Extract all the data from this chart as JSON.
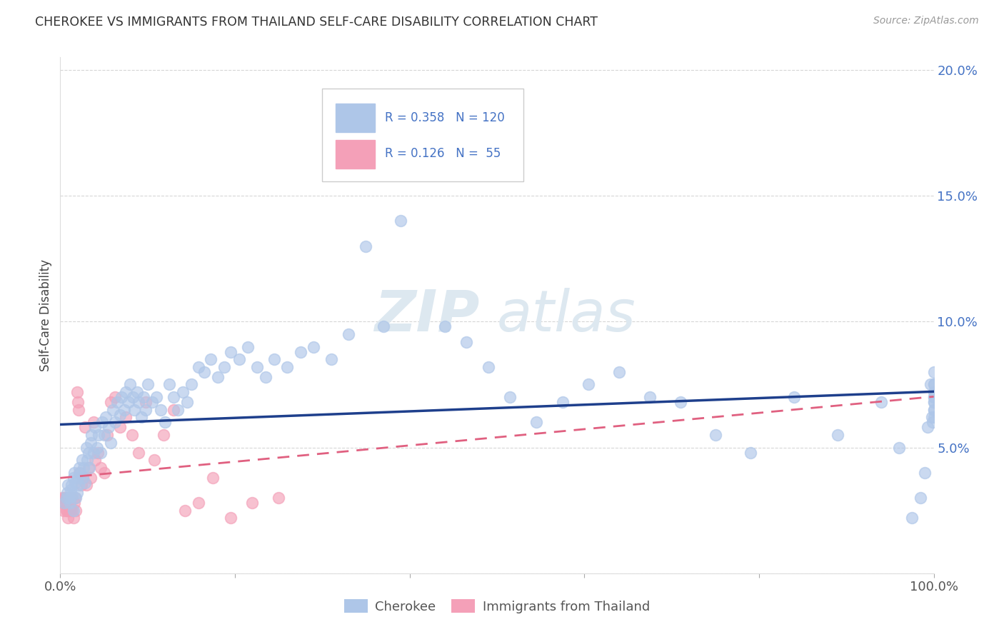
{
  "title": "CHEROKEE VS IMMIGRANTS FROM THAILAND SELF-CARE DISABILITY CORRELATION CHART",
  "source": "Source: ZipAtlas.com",
  "ylabel": "Self-Care Disability",
  "xlim": [
    0,
    1.0
  ],
  "ylim": [
    0,
    0.205
  ],
  "cherokee_R": 0.358,
  "cherokee_N": 120,
  "thailand_R": 0.126,
  "thailand_N": 55,
  "cherokee_color": "#aec6e8",
  "thailand_color": "#f4a0b8",
  "trendline_cherokee_color": "#1e3f8c",
  "trendline_thailand_color": "#e06080",
  "legend_label_cherokee": "Cherokee",
  "legend_label_thailand": "Immigrants from Thailand",
  "watermark_zip": "ZIP",
  "watermark_atlas": "atlas",
  "tick_color": "#4472c4",
  "grid_color": "#cccccc",
  "cherokee_x": [
    0.005,
    0.007,
    0.008,
    0.009,
    0.01,
    0.011,
    0.012,
    0.013,
    0.014,
    0.015,
    0.015,
    0.016,
    0.017,
    0.018,
    0.019,
    0.02,
    0.021,
    0.022,
    0.023,
    0.025,
    0.026,
    0.027,
    0.028,
    0.03,
    0.031,
    0.032,
    0.033,
    0.035,
    0.036,
    0.038,
    0.04,
    0.042,
    0.044,
    0.046,
    0.048,
    0.05,
    0.052,
    0.055,
    0.058,
    0.06,
    0.063,
    0.065,
    0.068,
    0.07,
    0.073,
    0.075,
    0.078,
    0.08,
    0.083,
    0.085,
    0.088,
    0.09,
    0.093,
    0.095,
    0.098,
    0.1,
    0.105,
    0.11,
    0.115,
    0.12,
    0.125,
    0.13,
    0.135,
    0.14,
    0.145,
    0.15,
    0.158,
    0.165,
    0.172,
    0.18,
    0.188,
    0.195,
    0.205,
    0.215,
    0.225,
    0.235,
    0.245,
    0.26,
    0.275,
    0.29,
    0.31,
    0.33,
    0.35,
    0.37,
    0.39,
    0.415,
    0.44,
    0.465,
    0.49,
    0.515,
    0.545,
    0.575,
    0.605,
    0.64,
    0.675,
    0.71,
    0.75,
    0.79,
    0.84,
    0.89,
    0.94,
    0.96,
    0.975,
    0.985,
    0.99,
    0.993,
    0.996,
    0.998,
    0.999,
    1.0,
    1.0,
    1.0,
    1.0,
    1.0,
    1.0,
    1.0,
    1.0,
    1.0,
    1.0,
    1.0
  ],
  "cherokee_y": [
    0.028,
    0.03,
    0.032,
    0.035,
    0.03,
    0.028,
    0.033,
    0.035,
    0.031,
    0.038,
    0.025,
    0.04,
    0.036,
    0.03,
    0.032,
    0.038,
    0.035,
    0.042,
    0.04,
    0.045,
    0.038,
    0.042,
    0.036,
    0.05,
    0.045,
    0.048,
    0.042,
    0.052,
    0.055,
    0.048,
    0.058,
    0.05,
    0.055,
    0.048,
    0.06,
    0.055,
    0.062,
    0.058,
    0.052,
    0.065,
    0.06,
    0.068,
    0.063,
    0.07,
    0.065,
    0.072,
    0.068,
    0.075,
    0.07,
    0.065,
    0.072,
    0.068,
    0.062,
    0.07,
    0.065,
    0.075,
    0.068,
    0.07,
    0.065,
    0.06,
    0.075,
    0.07,
    0.065,
    0.072,
    0.068,
    0.075,
    0.082,
    0.08,
    0.085,
    0.078,
    0.082,
    0.088,
    0.085,
    0.09,
    0.082,
    0.078,
    0.085,
    0.082,
    0.088,
    0.09,
    0.085,
    0.095,
    0.13,
    0.098,
    0.14,
    0.16,
    0.098,
    0.092,
    0.082,
    0.07,
    0.06,
    0.068,
    0.075,
    0.08,
    0.07,
    0.068,
    0.055,
    0.048,
    0.07,
    0.055,
    0.068,
    0.05,
    0.022,
    0.03,
    0.04,
    0.058,
    0.075,
    0.062,
    0.06,
    0.072,
    0.068,
    0.07,
    0.065,
    0.075,
    0.062,
    0.08,
    0.07,
    0.068,
    0.065,
    0.075
  ],
  "thailand_x": [
    0.002,
    0.003,
    0.004,
    0.005,
    0.006,
    0.006,
    0.007,
    0.007,
    0.008,
    0.008,
    0.009,
    0.009,
    0.01,
    0.01,
    0.011,
    0.011,
    0.012,
    0.013,
    0.014,
    0.015,
    0.016,
    0.017,
    0.018,
    0.019,
    0.02,
    0.021,
    0.022,
    0.024,
    0.026,
    0.028,
    0.03,
    0.032,
    0.035,
    0.038,
    0.04,
    0.043,
    0.046,
    0.05,
    0.054,
    0.058,
    0.063,
    0.068,
    0.075,
    0.082,
    0.09,
    0.098,
    0.108,
    0.118,
    0.13,
    0.143,
    0.158,
    0.175,
    0.195,
    0.22,
    0.25
  ],
  "thailand_y": [
    0.03,
    0.028,
    0.025,
    0.03,
    0.028,
    0.03,
    0.025,
    0.03,
    0.025,
    0.028,
    0.022,
    0.028,
    0.03,
    0.025,
    0.028,
    0.03,
    0.025,
    0.03,
    0.025,
    0.022,
    0.028,
    0.03,
    0.025,
    0.072,
    0.068,
    0.065,
    0.04,
    0.035,
    0.038,
    0.058,
    0.035,
    0.042,
    0.038,
    0.06,
    0.045,
    0.048,
    0.042,
    0.04,
    0.055,
    0.068,
    0.07,
    0.058,
    0.062,
    0.055,
    0.048,
    0.068,
    0.045,
    0.055,
    0.065,
    0.025,
    0.028,
    0.038,
    0.022,
    0.028,
    0.03
  ]
}
